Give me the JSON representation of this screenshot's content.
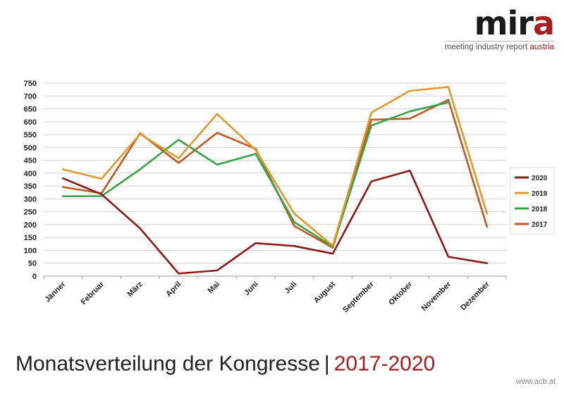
{
  "logo": {
    "mir": "mir",
    "a": "a",
    "tagline_main": "meeting industry report",
    "tagline_accent": "austria"
  },
  "footer": {
    "title_main": "Monatsverteilung der Kongresse",
    "separator": "|",
    "title_years": "2017-2020",
    "url": "www.acb.at"
  },
  "chart_data": {
    "type": "line",
    "title": "",
    "xlabel": "",
    "ylabel": "",
    "ylim": [
      0,
      750
    ],
    "yticks": [
      0,
      50,
      100,
      150,
      200,
      250,
      300,
      350,
      400,
      450,
      500,
      550,
      600,
      650,
      700,
      750
    ],
    "grid": true,
    "legend_position": "right",
    "categories": [
      "Jänner",
      "Februar",
      "März",
      "April",
      "Mai",
      "Juni",
      "Juli",
      "August",
      "September",
      "Oktober",
      "November",
      "Dezember"
    ],
    "series": [
      {
        "name": "2020",
        "color": "#8b1a1a",
        "values": [
          380,
          318,
          185,
          10,
          22,
          128,
          117,
          87,
          368,
          410,
          75,
          50
        ]
      },
      {
        "name": "2019",
        "color": "#e09a2c",
        "values": [
          415,
          378,
          552,
          458,
          630,
          490,
          243,
          118,
          635,
          720,
          735,
          243
        ]
      },
      {
        "name": "2018",
        "color": "#3aa34a",
        "values": [
          310,
          311,
          415,
          530,
          433,
          475,
          210,
          115,
          585,
          640,
          675,
          null
        ]
      },
      {
        "name": "2017",
        "color": "#bf5a24",
        "values": [
          346,
          322,
          555,
          440,
          557,
          495,
          195,
          110,
          608,
          612,
          685,
          192
        ]
      }
    ]
  }
}
